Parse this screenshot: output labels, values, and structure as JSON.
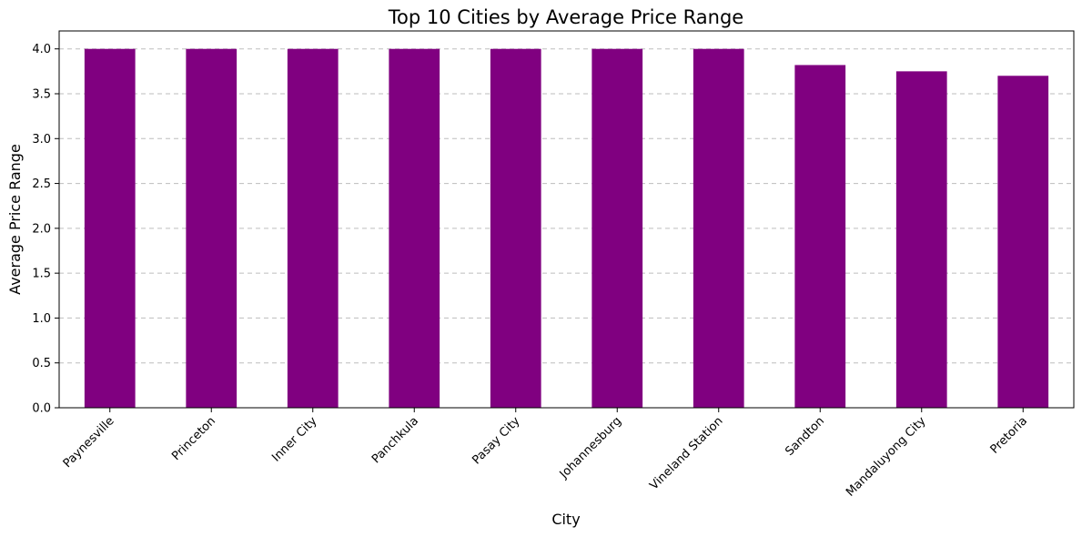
{
  "chart_data": {
    "type": "bar",
    "title": "Top 10 Cities by Average Price Range",
    "xlabel": "City",
    "ylabel": "Average Price Range",
    "categories": [
      "Paynesville",
      "Princeton",
      "Inner City",
      "Panchkula",
      "Pasay City",
      "Johannesburg",
      "Vineland Station",
      "Sandton",
      "Mandaluyong City",
      "Pretoria"
    ],
    "values": [
      4.0,
      4.0,
      4.0,
      4.0,
      4.0,
      4.0,
      4.0,
      3.82,
      3.75,
      3.7
    ],
    "ylim": [
      0,
      4.2
    ],
    "yticks": [
      "0.0",
      "0.5",
      "1.0",
      "1.5",
      "2.0",
      "2.5",
      "3.0",
      "3.5",
      "4.0"
    ],
    "grid": "y-dashed",
    "bar_color": "#800080",
    "legend": "none"
  }
}
